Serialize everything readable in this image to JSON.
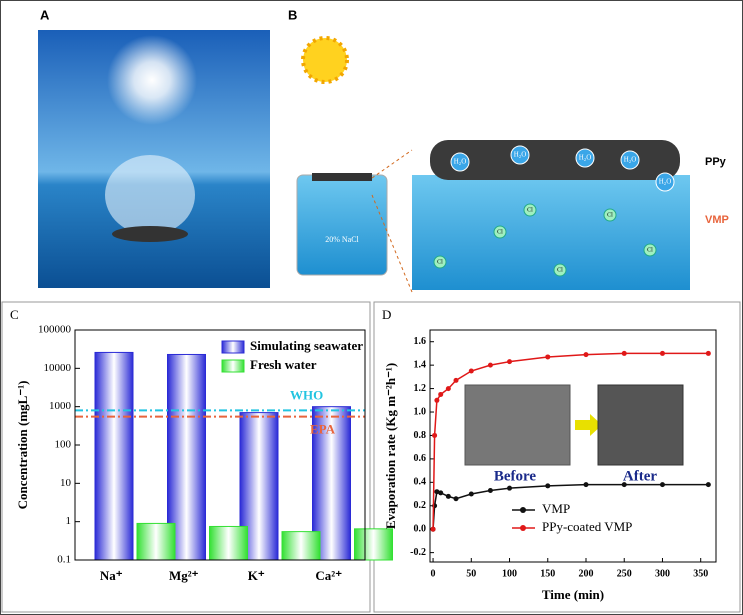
{
  "panels": {
    "a": "A",
    "b": "B"
  },
  "diagram": {
    "ppy": "PPy",
    "vmp": "VMP",
    "beaker": "20% NaCl",
    "water": "H₂O",
    "chloride": "Cl"
  },
  "chart_data": [
    {
      "type": "bar",
      "panel": "C",
      "ylabel": "Concentration (mgL⁻¹)",
      "log_scale": true,
      "categories": [
        "Na⁺",
        "Mg²⁺",
        "K⁺",
        "Ca²⁺"
      ],
      "series": [
        {
          "name": "Simulating seawater",
          "color": "#2b2bd6",
          "values": [
            26000,
            23000,
            700,
            1000
          ]
        },
        {
          "name": "Fresh water",
          "color": "#33e033",
          "values": [
            0.9,
            0.75,
            0.55,
            0.65
          ]
        }
      ],
      "ylim": [
        0.1,
        100000
      ],
      "yticks": [
        0.1,
        1,
        10,
        100,
        1000,
        10000,
        100000
      ],
      "reference_lines": [
        {
          "name": "WHO",
          "value": 800,
          "color": "#22c4e0"
        },
        {
          "name": "EPA",
          "value": 550,
          "color": "#e8643c"
        }
      ],
      "legend": "upper right"
    },
    {
      "type": "line",
      "panel": "D",
      "xlabel": "Time (min)",
      "ylabel": "Evaporation rate (Kg m⁻²h⁻¹)",
      "x": [
        0,
        2,
        5,
        10,
        20,
        30,
        50,
        75,
        100,
        150,
        200,
        250,
        300,
        360
      ],
      "series": [
        {
          "name": "VMP",
          "color": "#111111",
          "values": [
            0,
            0.2,
            0.32,
            0.31,
            0.28,
            0.26,
            0.3,
            0.33,
            0.35,
            0.37,
            0.38,
            0.38,
            0.38,
            0.38
          ]
        },
        {
          "name": "PPy-coated VMP",
          "color": "#e01818",
          "values": [
            0,
            0.8,
            1.1,
            1.15,
            1.2,
            1.27,
            1.35,
            1.4,
            1.43,
            1.47,
            1.49,
            1.5,
            1.5,
            1.5
          ]
        }
      ],
      "xlim": [
        -4,
        370
      ],
      "xticks": [
        0,
        50,
        100,
        150,
        200,
        250,
        300,
        350
      ],
      "ylim": [
        -0.28,
        1.7
      ],
      "yticks": [
        -0.2,
        {
          "value": 0,
          "label": "0.0"
        },
        0.2,
        0.4,
        0.6,
        0.8,
        {
          "value": 1,
          "label": "1.0"
        },
        1.2,
        1.4,
        1.6
      ],
      "inset": {
        "before": "Before",
        "after": "After"
      },
      "legend": "lower right"
    }
  ]
}
